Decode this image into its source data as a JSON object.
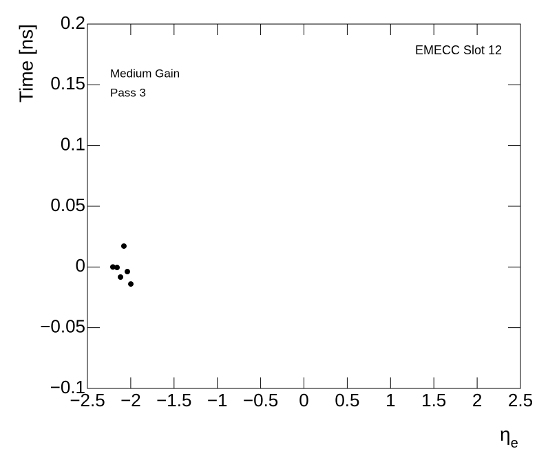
{
  "chart_data": {
    "type": "scatter",
    "xlabel": {
      "text": "η",
      "subscript": "e"
    },
    "ylabel": "Time [ns]",
    "annotations": [
      "EMECC Slot 12",
      "Medium Gain",
      "Pass 3"
    ],
    "x": [
      -2.206,
      -2.158,
      -2.118,
      -2.079,
      -2.039,
      -1.999
    ],
    "series": [
      {
        "color": "#000000",
        "values": [
          0.0,
          -0.0004,
          -0.0083,
          0.0172,
          -0.0038,
          -0.014
        ]
      }
    ],
    "xlim": [
      -2.5,
      2.5
    ],
    "ylim": [
      -0.1,
      0.2
    ],
    "xticks": [
      {
        "value": -2.5,
        "label": "−2.5"
      },
      {
        "value": -2,
        "label": "−2"
      },
      {
        "value": -1.5,
        "label": "−1.5"
      },
      {
        "value": -1,
        "label": "−1"
      },
      {
        "value": -0.5,
        "label": "−0.5"
      },
      0,
      0.5,
      1,
      1.5,
      2,
      2.5
    ],
    "yticks": [
      {
        "value": -0.1,
        "label": "−0.1"
      },
      {
        "value": -0.05,
        "label": "−0.05"
      },
      0,
      0.05,
      0.1,
      0.15,
      0.2
    ]
  }
}
